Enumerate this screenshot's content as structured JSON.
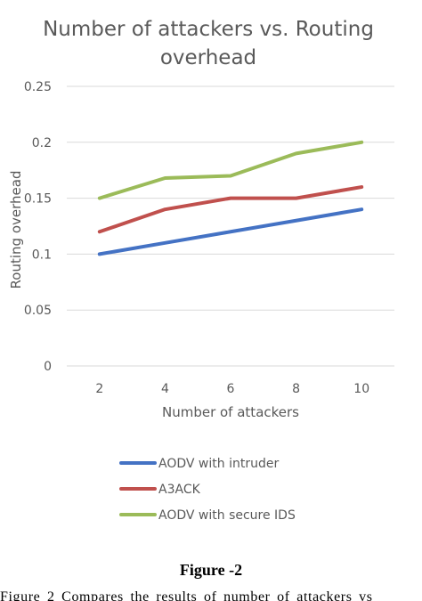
{
  "chart_data": {
    "type": "line",
    "title_lines": [
      "Number of attackers vs. Routing",
      "overhead"
    ],
    "xlabel": "Number of attackers",
    "ylabel": "Routing overhead",
    "x": [
      2,
      4,
      6,
      8,
      10
    ],
    "ylim": [
      0,
      0.25
    ],
    "y_ticks": [
      "0",
      "0.05",
      "0.1",
      "0.15",
      "0.2",
      "0.25"
    ],
    "grid": true,
    "legend_position": "bottom",
    "series": [
      {
        "name": "AODV with intruder",
        "color": "#4472c4",
        "values": [
          0.1,
          0.11,
          0.12,
          0.13,
          0.14
        ]
      },
      {
        "name": "A3ACK",
        "color": "#c0504d",
        "values": [
          0.12,
          0.14,
          0.15,
          0.15,
          0.16
        ]
      },
      {
        "name": "AODV with secure IDS",
        "color": "#9bbb59",
        "values": [
          0.15,
          0.168,
          0.17,
          0.19,
          0.2
        ]
      }
    ]
  },
  "figure_label": "Figure -2",
  "caption": "Figure 2 Compares the results of number of attackers vs"
}
